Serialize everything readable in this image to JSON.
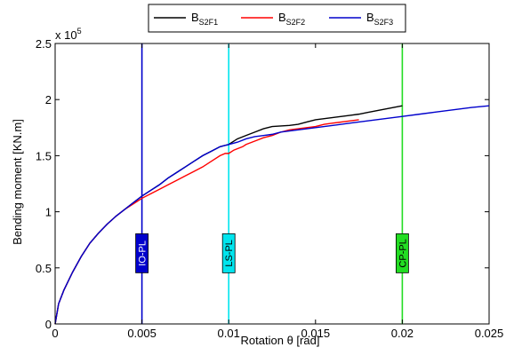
{
  "chart_data": {
    "type": "line",
    "xlabel": "Rotation  θ [rad]",
    "ylabel": "Bending moment  [KN.m]",
    "xlim": [
      0,
      0.025
    ],
    "ylim": [
      0,
      250000
    ],
    "y_multiplier_label": "x 10",
    "y_multiplier_exp": "5",
    "xticks": [
      0,
      0.005,
      0.01,
      0.015,
      0.02,
      0.025
    ],
    "xtick_labels": [
      "0",
      "0.005",
      "0.01",
      "0.015",
      "0.02",
      "0.025"
    ],
    "yticks": [
      0,
      50000,
      100000,
      150000,
      200000,
      250000
    ],
    "ytick_labels": [
      "0",
      "0.5",
      "1",
      "1.5",
      "2",
      "2.5"
    ],
    "grid": false,
    "legend_position": "top-center",
    "series": [
      {
        "name": "B",
        "name_sub": "S2F1",
        "color": "#000000",
        "x": [
          0,
          0.0002,
          0.0005,
          0.001,
          0.0015,
          0.002,
          0.0025,
          0.003,
          0.0035,
          0.004,
          0.0045,
          0.005,
          0.0055,
          0.006,
          0.0065,
          0.007,
          0.0075,
          0.008,
          0.0085,
          0.009,
          0.0095,
          0.01,
          0.0105,
          0.011,
          0.0115,
          0.012,
          0.0125,
          0.013,
          0.0135,
          0.014,
          0.0145,
          0.015,
          0.0155,
          0.016,
          0.0165,
          0.017,
          0.0175,
          0.018,
          0.0185,
          0.019,
          0.0195,
          0.02
        ],
        "y": [
          0,
          18000,
          30000,
          46000,
          60000,
          72000,
          81000,
          89000,
          96000,
          102000,
          108000,
          114000,
          119000,
          124000,
          130000,
          135000,
          140000,
          145000,
          150000,
          154000,
          158000,
          160000,
          165000,
          168000,
          171000,
          174000,
          176000,
          176500,
          177000,
          178000,
          180000,
          182000,
          183000,
          184000,
          185000,
          186000,
          187000,
          188500,
          190000,
          191500,
          193000,
          194500
        ]
      },
      {
        "name": "B",
        "name_sub": "S2F2",
        "color": "#ff0000",
        "x": [
          0,
          0.0002,
          0.0005,
          0.001,
          0.0015,
          0.002,
          0.0025,
          0.003,
          0.0035,
          0.004,
          0.0045,
          0.005,
          0.0055,
          0.006,
          0.0065,
          0.007,
          0.0075,
          0.008,
          0.0085,
          0.009,
          0.0095,
          0.0098,
          0.01,
          0.0103,
          0.0108,
          0.011,
          0.0115,
          0.012,
          0.0125,
          0.013,
          0.0135,
          0.014,
          0.0145,
          0.015,
          0.0155,
          0.016,
          0.0165,
          0.017,
          0.0175
        ],
        "y": [
          0,
          18000,
          30000,
          46000,
          60000,
          72000,
          81000,
          89000,
          96000,
          102000,
          107000,
          112000,
          116000,
          120000,
          124000,
          128000,
          132000,
          136000,
          140000,
          145000,
          150000,
          152000,
          152000,
          155000,
          158000,
          160000,
          163000,
          166000,
          168000,
          171000,
          173000,
          174000,
          175000,
          176000,
          178000,
          179000,
          180000,
          181000,
          182000
        ]
      },
      {
        "name": "B",
        "name_sub": "S2F3",
        "color": "#0000cc",
        "x": [
          0,
          0.0002,
          0.0005,
          0.001,
          0.0015,
          0.002,
          0.0025,
          0.003,
          0.0035,
          0.004,
          0.0045,
          0.005,
          0.0055,
          0.006,
          0.0065,
          0.007,
          0.0075,
          0.008,
          0.0085,
          0.009,
          0.0095,
          0.01,
          0.0105,
          0.011,
          0.0115,
          0.012,
          0.0125,
          0.013,
          0.0135,
          0.014,
          0.015,
          0.016,
          0.017,
          0.018,
          0.019,
          0.02,
          0.021,
          0.022,
          0.023,
          0.024,
          0.025
        ],
        "y": [
          0,
          18000,
          30000,
          46000,
          60000,
          72000,
          81000,
          89000,
          96000,
          102000,
          108000,
          114000,
          119000,
          124000,
          130000,
          135000,
          140000,
          145000,
          150000,
          154000,
          158000,
          160000,
          162000,
          165000,
          167000,
          168000,
          169000,
          171000,
          172000,
          173000,
          175000,
          177000,
          179000,
          181000,
          183000,
          185000,
          187000,
          189000,
          191000,
          193000,
          194500
        ]
      }
    ],
    "reference_lines": [
      {
        "x": 0.005,
        "label": "IO-PL",
        "color": "#0000cc",
        "label_fill": "#0000cc",
        "text_color": "#ffffff"
      },
      {
        "x": 0.01,
        "label": "LS-PL",
        "color": "#00e5ee",
        "label_fill": "#00e5ee",
        "text_color": "#000000"
      },
      {
        "x": 0.02,
        "label": "CP-PL",
        "color": "#22dd22",
        "label_fill": "#22dd22",
        "text_color": "#000000"
      }
    ]
  }
}
